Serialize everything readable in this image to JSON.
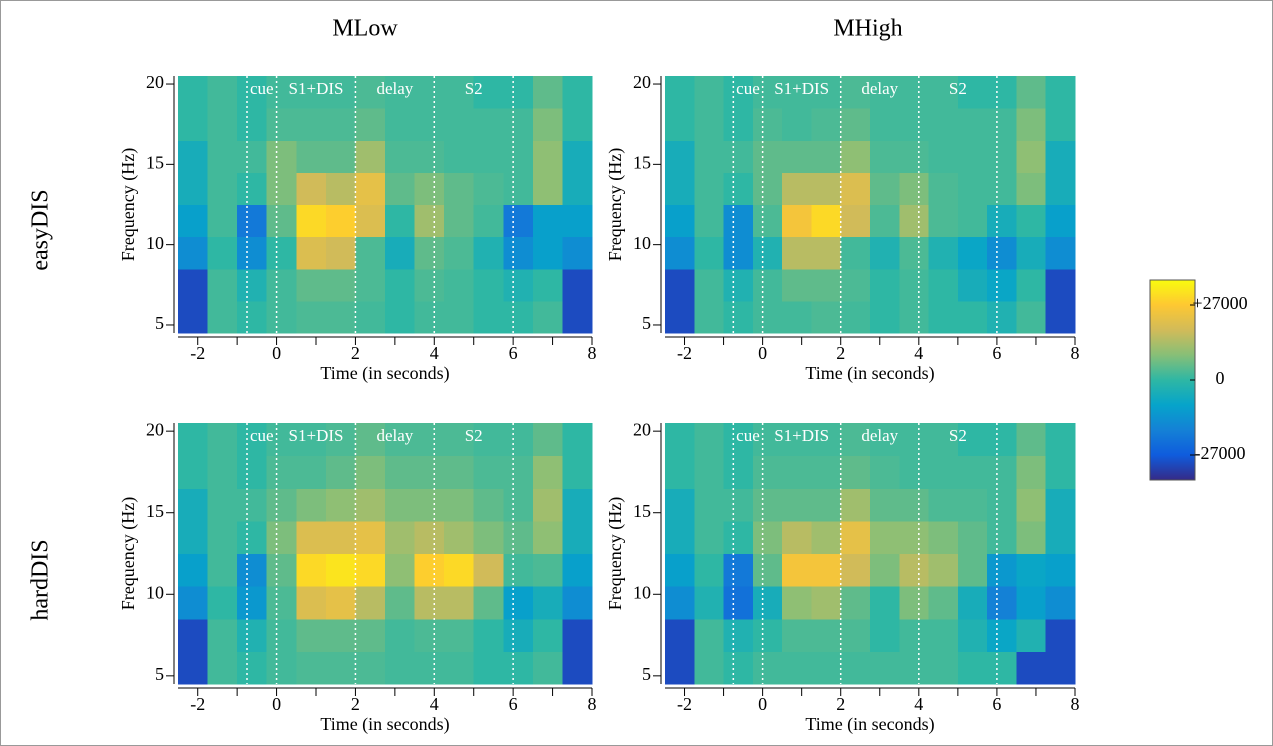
{
  "column_titles": [
    "MLow",
    "MHigh"
  ],
  "row_titles": [
    "easyDIS",
    "hardDIS"
  ],
  "colorbar": {
    "lim": [
      -36000,
      36000
    ],
    "ticks": [
      {
        "value": 27000,
        "label": "+27000"
      },
      0,
      -27000
    ],
    "colormap": [
      "#352a87",
      "#0f5cdd",
      "#1481d6",
      "#06a4ca",
      "#2eb7a4",
      "#87bf77",
      "#d1bb59",
      "#fec832",
      "#f9fb0e"
    ]
  },
  "chart_data": [
    {
      "type": "heatmap",
      "xlabel": "Time (in seconds)",
      "ylabel": "Frequency (Hz)",
      "xlim": [
        -2.5,
        8
      ],
      "ylim": [
        4.5,
        20.5
      ],
      "xticks": [
        -2,
        0,
        2,
        4,
        6,
        8
      ],
      "xminor": [
        -1,
        1,
        3,
        5,
        7
      ],
      "yticks": [
        5,
        10,
        15,
        20
      ],
      "vlines": [
        -0.75,
        0,
        2,
        4,
        6
      ],
      "annotations": [
        "cue",
        "S1+DIS",
        "delay",
        "S2"
      ],
      "x": [
        -2.125,
        -1.375,
        -0.625,
        0.125,
        0.875,
        1.625,
        2.375,
        3.125,
        3.875,
        4.625,
        5.375,
        6.125,
        6.875,
        7.625
      ],
      "y": [
        5.5,
        7.5,
        9.5,
        11.5,
        13.5,
        15.5,
        17.5,
        19.5
      ],
      "z": [
        [
          -30000,
          2000,
          0,
          2000,
          3000,
          3000,
          2000,
          0,
          2000,
          2000,
          0,
          0,
          2000,
          -30000
        ],
        [
          -30000,
          2000,
          -3000,
          2000,
          5000,
          5000,
          3000,
          0,
          3000,
          2000,
          0,
          -3000,
          0,
          -30000
        ],
        [
          -15000,
          0,
          -15000,
          0,
          20000,
          18000,
          3000,
          -5000,
          5000,
          3000,
          -3000,
          -15000,
          -10000,
          -15000
        ],
        [
          -10000,
          2000,
          -20000,
          5000,
          30000,
          28000,
          20000,
          0,
          12000,
          5000,
          2000,
          -20000,
          -10000,
          -10000
        ],
        [
          -5000,
          2000,
          0,
          8000,
          18000,
          15000,
          22000,
          5000,
          8000,
          5000,
          3000,
          2000,
          10000,
          -5000
        ],
        [
          -5000,
          2000,
          2000,
          8000,
          5000,
          5000,
          12000,
          3000,
          3000,
          2000,
          2000,
          2000,
          10000,
          -5000
        ],
        [
          0,
          2000,
          0,
          3000,
          3000,
          3000,
          5000,
          2000,
          2000,
          2000,
          2000,
          2000,
          8000,
          0
        ],
        [
          0,
          2000,
          0,
          2000,
          2000,
          2000,
          3000,
          2000,
          2000,
          2000,
          0,
          0,
          5000,
          0
        ]
      ]
    },
    {
      "type": "heatmap",
      "xlabel": "Time (in seconds)",
      "ylabel": "Frequency (Hz)",
      "xlim": [
        -2.5,
        8
      ],
      "ylim": [
        4.5,
        20.5
      ],
      "xticks": [
        -2,
        0,
        2,
        4,
        6,
        8
      ],
      "xminor": [
        -1,
        1,
        3,
        5,
        7
      ],
      "yticks": [
        5,
        10,
        15,
        20
      ],
      "vlines": [
        -0.75,
        0,
        2,
        4,
        6
      ],
      "annotations": [
        "cue",
        "S1+DIS",
        "delay",
        "S2"
      ],
      "x": [
        -2.125,
        -1.375,
        -0.625,
        0.125,
        0.875,
        1.625,
        2.375,
        3.125,
        3.875,
        4.625,
        5.375,
        6.125,
        6.875,
        7.625
      ],
      "y": [
        5.5,
        7.5,
        9.5,
        11.5,
        13.5,
        15.5,
        17.5,
        19.5
      ],
      "z": [
        [
          -30000,
          2000,
          0,
          2000,
          2000,
          3000,
          2000,
          0,
          2000,
          0,
          0,
          -3000,
          2000,
          -30000
        ],
        [
          -30000,
          2000,
          -3000,
          2000,
          5000,
          5000,
          3000,
          0,
          2000,
          0,
          -5000,
          -8000,
          0,
          -30000
        ],
        [
          -15000,
          0,
          -15000,
          -3000,
          15000,
          15000,
          2000,
          -3000,
          3000,
          -3000,
          -8000,
          -15000,
          -5000,
          -15000
        ],
        [
          -10000,
          2000,
          -15000,
          3000,
          25000,
          30000,
          18000,
          3000,
          12000,
          3000,
          2000,
          -5000,
          0,
          -10000
        ],
        [
          -5000,
          2000,
          0,
          5000,
          15000,
          15000,
          20000,
          5000,
          8000,
          3000,
          2000,
          2000,
          8000,
          -5000
        ],
        [
          -5000,
          2000,
          2000,
          5000,
          5000,
          5000,
          10000,
          3000,
          3000,
          2000,
          2000,
          2000,
          10000,
          -5000
        ],
        [
          0,
          2000,
          0,
          3000,
          2000,
          3000,
          5000,
          2000,
          2000,
          2000,
          2000,
          2000,
          8000,
          0
        ],
        [
          0,
          2000,
          0,
          2000,
          2000,
          2000,
          3000,
          2000,
          2000,
          2000,
          0,
          0,
          5000,
          0
        ]
      ]
    },
    {
      "type": "heatmap",
      "xlabel": "Time (in seconds)",
      "ylabel": "Frequency (Hz)",
      "xlim": [
        -2.5,
        8
      ],
      "ylim": [
        4.5,
        20.5
      ],
      "xticks": [
        -2,
        0,
        2,
        4,
        6,
        8
      ],
      "xminor": [
        -1,
        1,
        3,
        5,
        7
      ],
      "yticks": [
        5,
        10,
        15,
        20
      ],
      "vlines": [
        -0.75,
        0,
        2,
        4,
        6
      ],
      "annotations": [
        "cue",
        "S1+DIS",
        "delay",
        "S2"
      ],
      "x": [
        -2.125,
        -1.375,
        -0.625,
        0.125,
        0.875,
        1.625,
        2.375,
        3.125,
        3.875,
        4.625,
        5.375,
        6.125,
        6.875,
        7.625
      ],
      "y": [
        5.5,
        7.5,
        9.5,
        11.5,
        13.5,
        15.5,
        17.5,
        19.5
      ],
      "z": [
        [
          -30000,
          2000,
          0,
          2000,
          3000,
          3000,
          3000,
          2000,
          2000,
          2000,
          0,
          0,
          2000,
          -30000
        ],
        [
          -30000,
          2000,
          -3000,
          2000,
          5000,
          5000,
          5000,
          2000,
          3000,
          3000,
          0,
          -5000,
          0,
          -30000
        ],
        [
          -15000,
          0,
          -12000,
          3000,
          20000,
          22000,
          15000,
          5000,
          15000,
          15000,
          5000,
          -10000,
          -5000,
          -15000
        ],
        [
          -10000,
          2000,
          -15000,
          5000,
          30000,
          32000,
          30000,
          10000,
          28000,
          30000,
          18000,
          2000,
          3000,
          -10000
        ],
        [
          -5000,
          2000,
          0,
          8000,
          20000,
          20000,
          22000,
          12000,
          15000,
          12000,
          8000,
          5000,
          10000,
          -5000
        ],
        [
          -5000,
          2000,
          2000,
          5000,
          8000,
          10000,
          12000,
          8000,
          8000,
          8000,
          5000,
          3000,
          12000,
          -5000
        ],
        [
          0,
          2000,
          0,
          3000,
          3000,
          5000,
          8000,
          5000,
          5000,
          5000,
          3000,
          3000,
          10000,
          0
        ],
        [
          0,
          2000,
          0,
          2000,
          2000,
          3000,
          5000,
          3000,
          3000,
          3000,
          2000,
          2000,
          5000,
          0
        ]
      ]
    },
    {
      "type": "heatmap",
      "xlabel": "Time (in seconds)",
      "ylabel": "Frequency (Hz)",
      "xlim": [
        -2.5,
        8
      ],
      "ylim": [
        4.5,
        20.5
      ],
      "xticks": [
        -2,
        0,
        2,
        4,
        6,
        8
      ],
      "xminor": [
        -1,
        1,
        3,
        5,
        7
      ],
      "yticks": [
        5,
        10,
        15,
        20
      ],
      "vlines": [
        -0.75,
        0,
        2,
        4,
        6
      ],
      "annotations": [
        "cue",
        "S1+DIS",
        "delay",
        "S2"
      ],
      "x": [
        -2.125,
        -1.375,
        -0.625,
        0.125,
        0.875,
        1.625,
        2.375,
        3.125,
        3.875,
        4.625,
        5.375,
        6.125,
        6.875,
        7.625
      ],
      "y": [
        5.5,
        7.5,
        9.5,
        11.5,
        13.5,
        15.5,
        17.5,
        19.5
      ],
      "z": [
        [
          -30000,
          2000,
          0,
          2000,
          2000,
          2000,
          2000,
          2000,
          2000,
          2000,
          0,
          0,
          -30000,
          -30000
        ],
        [
          -30000,
          2000,
          -3000,
          0,
          3000,
          3000,
          3000,
          0,
          2000,
          2000,
          -3000,
          -8000,
          -3000,
          -30000
        ],
        [
          -15000,
          -3000,
          -22000,
          -5000,
          10000,
          12000,
          5000,
          0,
          8000,
          5000,
          -5000,
          -18000,
          -10000,
          -15000
        ],
        [
          -10000,
          0,
          -20000,
          5000,
          25000,
          25000,
          18000,
          8000,
          15000,
          12000,
          5000,
          -12000,
          -8000,
          -10000
        ],
        [
          -5000,
          2000,
          0,
          8000,
          15000,
          12000,
          22000,
          10000,
          10000,
          8000,
          5000,
          2000,
          8000,
          -5000
        ],
        [
          -5000,
          2000,
          2000,
          5000,
          5000,
          5000,
          12000,
          5000,
          5000,
          3000,
          3000,
          2000,
          10000,
          -5000
        ],
        [
          0,
          2000,
          0,
          3000,
          3000,
          3000,
          5000,
          3000,
          2000,
          2000,
          2000,
          2000,
          8000,
          0
        ],
        [
          0,
          2000,
          0,
          2000,
          2000,
          2000,
          3000,
          2000,
          2000,
          2000,
          0,
          0,
          5000,
          0
        ]
      ]
    }
  ]
}
